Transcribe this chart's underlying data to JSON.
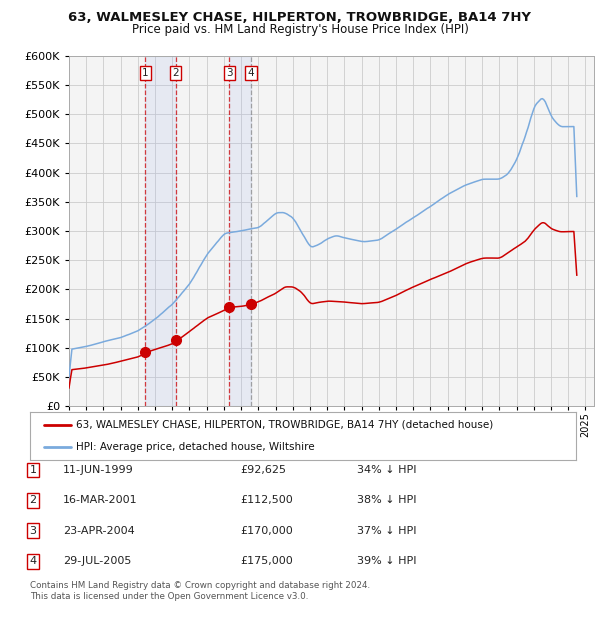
{
  "title": "63, WALMESLEY CHASE, HILPERTON, TROWBRIDGE, BA14 7HY",
  "subtitle": "Price paid vs. HM Land Registry's House Price Index (HPI)",
  "legend_line1": "63, WALMESLEY CHASE, HILPERTON, TROWBRIDGE, BA14 7HY (detached house)",
  "legend_line2": "HPI: Average price, detached house, Wiltshire",
  "footer1": "Contains HM Land Registry data © Crown copyright and database right 2024.",
  "footer2": "This data is licensed under the Open Government Licence v3.0.",
  "sale_color": "#cc0000",
  "hpi_color": "#7aaadd",
  "background_color": "#ffffff",
  "grid_color": "#cccccc",
  "chart_bg": "#f0f0f0",
  "ylim": [
    0,
    600000
  ],
  "yticks": [
    0,
    50000,
    100000,
    150000,
    200000,
    250000,
    300000,
    350000,
    400000,
    450000,
    500000,
    550000,
    600000
  ],
  "xmin": 1995,
  "xmax": 2025.5,
  "sales": [
    {
      "label": "1",
      "date_x": 1999.44,
      "price": 92625
    },
    {
      "label": "2",
      "date_x": 2001.21,
      "price": 112500
    },
    {
      "label": "3",
      "date_x": 2004.31,
      "price": 170000
    },
    {
      "label": "4",
      "date_x": 2005.57,
      "price": 175000
    }
  ],
  "sale_table": [
    {
      "num": "1",
      "date": "11-JUN-1999",
      "price": "£92,625",
      "pct": "34% ↓ HPI"
    },
    {
      "num": "2",
      "date": "16-MAR-2001",
      "price": "£112,500",
      "pct": "38% ↓ HPI"
    },
    {
      "num": "3",
      "date": "23-APR-2004",
      "price": "£170,000",
      "pct": "37% ↓ HPI"
    },
    {
      "num": "4",
      "date": "29-JUL-2005",
      "price": "£175,000",
      "pct": "39% ↓ HPI"
    }
  ],
  "hpi_data_years": [
    1995.0,
    1995.08,
    1995.17,
    1995.25,
    1995.33,
    1995.42,
    1995.5,
    1995.58,
    1995.67,
    1995.75,
    1995.83,
    1995.92,
    1996.0,
    1996.08,
    1996.17,
    1996.25,
    1996.33,
    1996.42,
    1996.5,
    1996.58,
    1996.67,
    1996.75,
    1996.83,
    1996.92,
    1997.0,
    1997.08,
    1997.17,
    1997.25,
    1997.33,
    1997.42,
    1997.5,
    1997.58,
    1997.67,
    1997.75,
    1997.83,
    1997.92,
    1998.0,
    1998.08,
    1998.17,
    1998.25,
    1998.33,
    1998.42,
    1998.5,
    1998.58,
    1998.67,
    1998.75,
    1998.83,
    1998.92,
    1999.0,
    1999.08,
    1999.17,
    1999.25,
    1999.33,
    1999.42,
    1999.5,
    1999.58,
    1999.67,
    1999.75,
    1999.83,
    1999.92,
    2000.0,
    2000.08,
    2000.17,
    2000.25,
    2000.33,
    2000.42,
    2000.5,
    2000.58,
    2000.67,
    2000.75,
    2000.83,
    2000.92,
    2001.0,
    2001.08,
    2001.17,
    2001.25,
    2001.33,
    2001.42,
    2001.5,
    2001.58,
    2001.67,
    2001.75,
    2001.83,
    2001.92,
    2002.0,
    2002.08,
    2002.17,
    2002.25,
    2002.33,
    2002.42,
    2002.5,
    2002.58,
    2002.67,
    2002.75,
    2002.83,
    2002.92,
    2003.0,
    2003.08,
    2003.17,
    2003.25,
    2003.33,
    2003.42,
    2003.5,
    2003.58,
    2003.67,
    2003.75,
    2003.83,
    2003.92,
    2004.0,
    2004.08,
    2004.17,
    2004.25,
    2004.33,
    2004.42,
    2004.5,
    2004.58,
    2004.67,
    2004.75,
    2004.83,
    2004.92,
    2005.0,
    2005.08,
    2005.17,
    2005.25,
    2005.33,
    2005.42,
    2005.5,
    2005.58,
    2005.67,
    2005.75,
    2005.83,
    2005.92,
    2006.0,
    2006.08,
    2006.17,
    2006.25,
    2006.33,
    2006.42,
    2006.5,
    2006.58,
    2006.67,
    2006.75,
    2006.83,
    2006.92,
    2007.0,
    2007.08,
    2007.17,
    2007.25,
    2007.33,
    2007.42,
    2007.5,
    2007.58,
    2007.67,
    2007.75,
    2007.83,
    2007.92,
    2008.0,
    2008.08,
    2008.17,
    2008.25,
    2008.33,
    2008.42,
    2008.5,
    2008.58,
    2008.67,
    2008.75,
    2008.83,
    2008.92,
    2009.0,
    2009.08,
    2009.17,
    2009.25,
    2009.33,
    2009.42,
    2009.5,
    2009.58,
    2009.67,
    2009.75,
    2009.83,
    2009.92,
    2010.0,
    2010.08,
    2010.17,
    2010.25,
    2010.33,
    2010.42,
    2010.5,
    2010.58,
    2010.67,
    2010.75,
    2010.83,
    2010.92,
    2011.0,
    2011.08,
    2011.17,
    2011.25,
    2011.33,
    2011.42,
    2011.5,
    2011.58,
    2011.67,
    2011.75,
    2011.83,
    2011.92,
    2012.0,
    2012.08,
    2012.17,
    2012.25,
    2012.33,
    2012.42,
    2012.5,
    2012.58,
    2012.67,
    2012.75,
    2012.83,
    2012.92,
    2013.0,
    2013.08,
    2013.17,
    2013.25,
    2013.33,
    2013.42,
    2013.5,
    2013.58,
    2013.67,
    2013.75,
    2013.83,
    2013.92,
    2014.0,
    2014.08,
    2014.17,
    2014.25,
    2014.33,
    2014.42,
    2014.5,
    2014.58,
    2014.67,
    2014.75,
    2014.83,
    2014.92,
    2015.0,
    2015.08,
    2015.17,
    2015.25,
    2015.33,
    2015.42,
    2015.5,
    2015.58,
    2015.67,
    2015.75,
    2015.83,
    2015.92,
    2016.0,
    2016.08,
    2016.17,
    2016.25,
    2016.33,
    2016.42,
    2016.5,
    2016.58,
    2016.67,
    2016.75,
    2016.83,
    2016.92,
    2017.0,
    2017.08,
    2017.17,
    2017.25,
    2017.33,
    2017.42,
    2017.5,
    2017.58,
    2017.67,
    2017.75,
    2017.83,
    2017.92,
    2018.0,
    2018.08,
    2018.17,
    2018.25,
    2018.33,
    2018.42,
    2018.5,
    2018.58,
    2018.67,
    2018.75,
    2018.83,
    2018.92,
    2019.0,
    2019.08,
    2019.17,
    2019.25,
    2019.33,
    2019.42,
    2019.5,
    2019.58,
    2019.67,
    2019.75,
    2019.83,
    2019.92,
    2020.0,
    2020.08,
    2020.17,
    2020.25,
    2020.33,
    2020.42,
    2020.5,
    2020.58,
    2020.67,
    2020.75,
    2020.83,
    2020.92,
    2021.0,
    2021.08,
    2021.17,
    2021.25,
    2021.33,
    2021.42,
    2021.5,
    2021.58,
    2021.67,
    2021.75,
    2021.83,
    2021.92,
    2022.0,
    2022.08,
    2022.17,
    2022.25,
    2022.33,
    2022.42,
    2022.5,
    2022.58,
    2022.67,
    2022.75,
    2022.83,
    2022.92,
    2023.0,
    2023.08,
    2023.17,
    2023.25,
    2023.33,
    2023.42,
    2023.5,
    2023.58,
    2023.67,
    2023.75,
    2023.83,
    2023.92,
    2024.0,
    2024.08,
    2024.17,
    2024.25,
    2024.33,
    2024.5
  ]
}
